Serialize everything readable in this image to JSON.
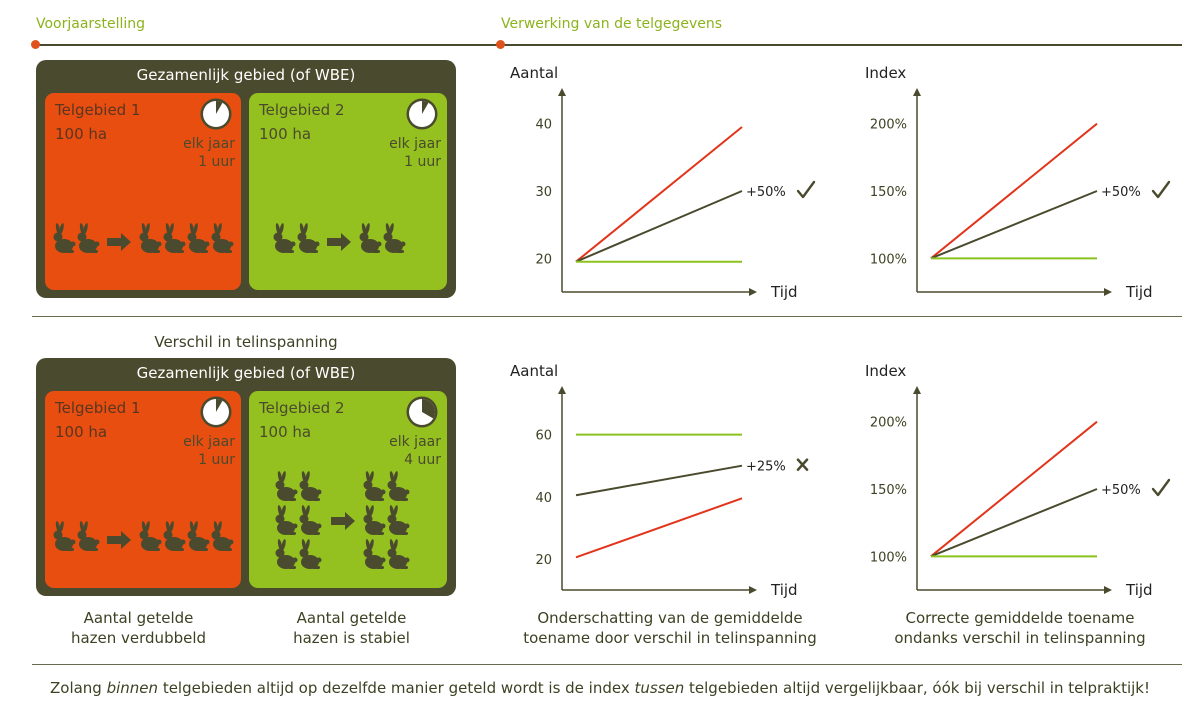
{
  "headers": {
    "left": "Voorjaarstelling",
    "right": "Verwerking van de telgegevens"
  },
  "section2_title": "Verschil in telinspanning",
  "panels": [
    {
      "title": "Gezamenlijk gebied (of WBE)",
      "areas": [
        {
          "name": "Telgebied 1",
          "size": "100 ha",
          "freq1": "elk jaar",
          "freq2": "1 uur",
          "clock_fraction": 0.0833,
          "hares_before": 2,
          "hares_after": 4
        },
        {
          "name": "Telgebied 2",
          "size": "100 ha",
          "freq1": "elk jaar",
          "freq2": "1 uur",
          "clock_fraction": 0.0833,
          "hares_before": 2,
          "hares_after": 2
        }
      ]
    },
    {
      "title": "Gezamenlijk gebied (of WBE)",
      "areas": [
        {
          "name": "Telgebied 1",
          "size": "100 ha",
          "freq1": "elk jaar",
          "freq2": "1 uur",
          "clock_fraction": 0.0833,
          "hares_before": 2,
          "hares_after": 4
        },
        {
          "name": "Telgebied 2",
          "size": "100 ha",
          "freq1": "elk jaar",
          "freq2": "4 uur",
          "clock_fraction": 0.3333,
          "hares_before": 6,
          "hares_after": 6
        }
      ]
    }
  ],
  "captions": {
    "area1": [
      "Aantal getelde",
      "hazen verdubbeld"
    ],
    "area2": [
      "Aantal getelde",
      "hazen is stabiel"
    ],
    "chart3": [
      "Onderschatting van de gemiddelde",
      "toename door verschil in telinspanning"
    ],
    "chart4": [
      "Correcte gemiddelde toename",
      "ondanks verschil in telinspanning"
    ]
  },
  "bottom_note": {
    "p1": "Zolang ",
    "p2": "binnen",
    "p3": " telgebieden altijd op dezelfde manier geteld wordt is de index ",
    "p4": "tussen",
    "p5": " telgebieden altijd vergelijkbaar, óók bij verschil in telpraktijk!"
  },
  "colors": {
    "orange": "#e84e10",
    "lime": "#94c11f",
    "dark": "#4a4a2e",
    "red_line": "#e2341a",
    "green_line": "#8cc21f"
  },
  "chart_data": [
    {
      "type": "line",
      "ylabel": "Aantal",
      "xlabel": "Tijd",
      "ylim": [
        15,
        45
      ],
      "yticks": [
        "20",
        "30",
        "40"
      ],
      "ytick_values": [
        20,
        30,
        40
      ],
      "series": [
        {
          "color": "red",
          "values": [
            19.5,
            39.5
          ]
        },
        {
          "color": "dark",
          "values": [
            19.5,
            30
          ],
          "label": "+50%",
          "mark": "check"
        },
        {
          "color": "green",
          "values": [
            19.5,
            19.5
          ]
        }
      ]
    },
    {
      "type": "line",
      "ylabel": "Index",
      "xlabel": "Tijd",
      "ylim": [
        75,
        225
      ],
      "yticks": [
        "100%",
        "150%",
        "200%"
      ],
      "ytick_values": [
        100,
        150,
        200
      ],
      "series": [
        {
          "color": "red",
          "values": [
            100,
            200
          ]
        },
        {
          "color": "dark",
          "values": [
            100,
            150
          ],
          "label": "+50%",
          "mark": "check"
        },
        {
          "color": "green",
          "values": [
            100,
            100
          ]
        }
      ]
    },
    {
      "type": "line",
      "ylabel": "Aantal",
      "xlabel": "Tijd",
      "ylim": [
        10,
        75
      ],
      "yticks": [
        "20",
        "40",
        "60"
      ],
      "ytick_values": [
        20,
        40,
        60
      ],
      "series": [
        {
          "color": "green",
          "values": [
            60,
            60
          ]
        },
        {
          "color": "dark",
          "values": [
            40.5,
            50
          ],
          "label": "+25%",
          "mark": "cross"
        },
        {
          "color": "red",
          "values": [
            20.5,
            39.5
          ]
        }
      ]
    },
    {
      "type": "line",
      "ylabel": "Index",
      "xlabel": "Tijd",
      "ylim": [
        75,
        225
      ],
      "yticks": [
        "100%",
        "150%",
        "200%"
      ],
      "ytick_values": [
        100,
        150,
        200
      ],
      "series": [
        {
          "color": "red",
          "values": [
            100,
            200
          ]
        },
        {
          "color": "dark",
          "values": [
            100,
            150
          ],
          "label": "+50%",
          "mark": "check"
        },
        {
          "color": "green",
          "values": [
            100,
            100
          ]
        }
      ]
    }
  ]
}
